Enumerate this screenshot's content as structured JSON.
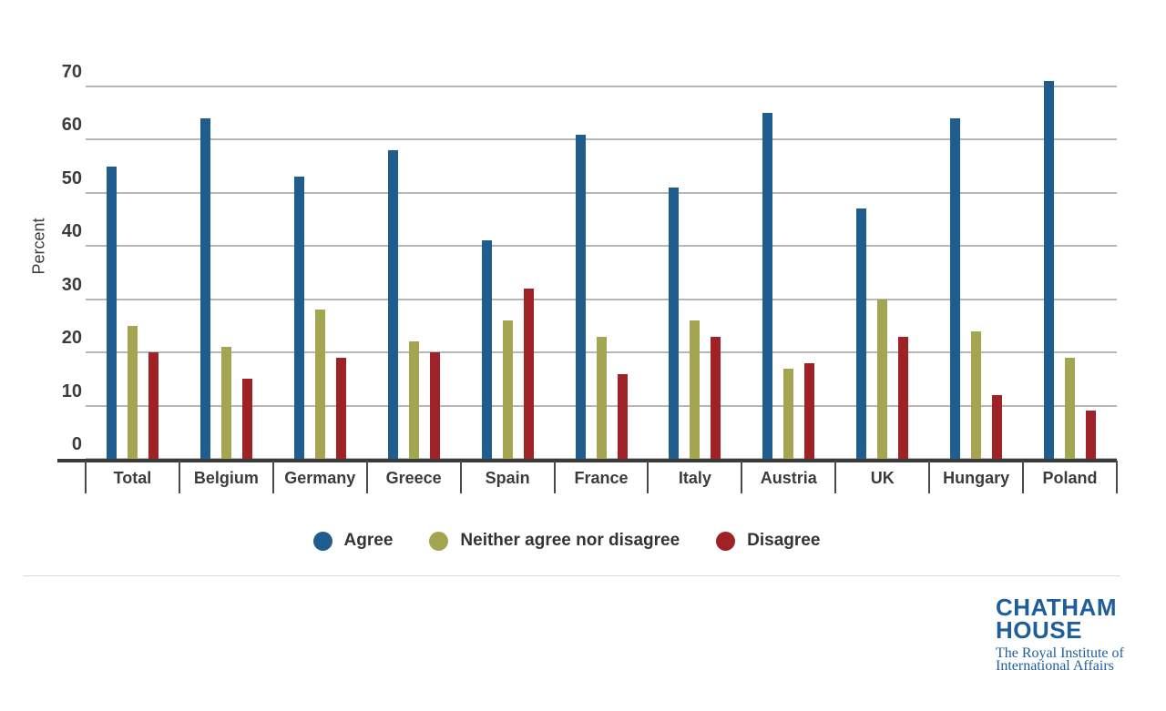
{
  "chart_data": {
    "type": "bar",
    "title": "",
    "xlabel": "",
    "ylabel": "Percent",
    "ylim": [
      0,
      70
    ],
    "yticks": [
      70,
      60,
      50,
      40,
      30,
      20,
      10,
      0
    ],
    "grid": true,
    "legend_position": "bottom",
    "categories": [
      "Total",
      "Belgium",
      "Germany",
      "Greece",
      "Spain",
      "France",
      "Italy",
      "Austria",
      "UK",
      "Hungary",
      "Poland"
    ],
    "series": [
      {
        "name": "Agree",
        "color": "#205d8c",
        "values": [
          55,
          64,
          53,
          58,
          41,
          61,
          51,
          65,
          47,
          64,
          71
        ]
      },
      {
        "name": "Neither agree nor disagree",
        "color": "#a4a550",
        "values": [
          25,
          21,
          28,
          22,
          26,
          23,
          26,
          17,
          30,
          24,
          19
        ]
      },
      {
        "name": "Disagree",
        "color": "#9e2226",
        "values": [
          20,
          15,
          19,
          20,
          32,
          16,
          23,
          18,
          23,
          12,
          9
        ]
      }
    ]
  },
  "colors": {
    "gridline": "#b7b7b7",
    "axis": "#3a3a3a",
    "text": "#3c3c3c",
    "divider": "#dcdcdc",
    "logo_blue": "#1e5e9b"
  },
  "branding": {
    "logo_line1": "CHATHAM",
    "logo_line2": "HOUSE",
    "logo_sub1": "The Royal Institute of",
    "logo_sub2": "International Affairs"
  }
}
